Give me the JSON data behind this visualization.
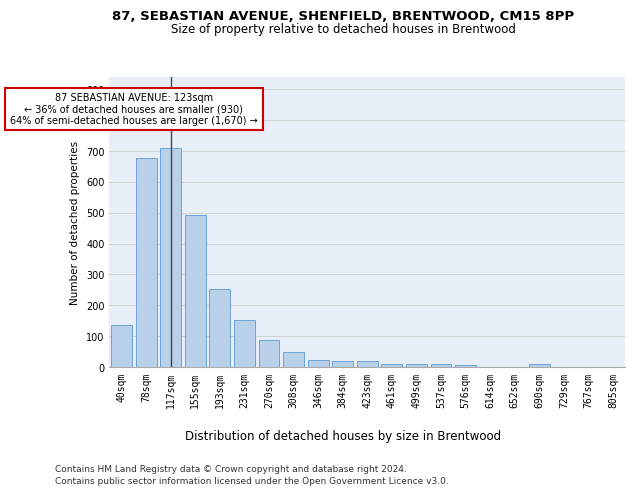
{
  "title": "87, SEBASTIAN AVENUE, SHENFIELD, BRENTWOOD, CM15 8PP",
  "subtitle": "Size of property relative to detached houses in Brentwood",
  "xlabel": "Distribution of detached houses by size in Brentwood",
  "ylabel": "Number of detached properties",
  "categories": [
    "40sqm",
    "78sqm",
    "117sqm",
    "155sqm",
    "193sqm",
    "231sqm",
    "270sqm",
    "308sqm",
    "346sqm",
    "384sqm",
    "423sqm",
    "461sqm",
    "499sqm",
    "537sqm",
    "576sqm",
    "614sqm",
    "652sqm",
    "690sqm",
    "729sqm",
    "767sqm",
    "805sqm"
  ],
  "values": [
    135,
    678,
    710,
    492,
    252,
    152,
    88,
    50,
    22,
    18,
    18,
    10,
    10,
    10,
    8,
    0,
    0,
    10,
    0,
    0,
    0
  ],
  "bar_color": "#b8d0e8",
  "bar_edge_color": "#5b9bd5",
  "vline_x": 2,
  "vline_color": "#444444",
  "annotation_text": "87 SEBASTIAN AVENUE: 123sqm\n← 36% of detached houses are smaller (930)\n64% of semi-detached houses are larger (1,670) →",
  "annotation_box_color": "#ffffff",
  "annotation_box_edge_color": "#cc0000",
  "ylim": [
    0,
    940
  ],
  "yticks": [
    0,
    100,
    200,
    300,
    400,
    500,
    600,
    700,
    800,
    900
  ],
  "grid_color": "#d0d0d0",
  "bg_color": "#e8eef8",
  "footer1": "Contains HM Land Registry data © Crown copyright and database right 2024.",
  "footer2": "Contains public sector information licensed under the Open Government Licence v3.0.",
  "title_fontsize": 9.5,
  "subtitle_fontsize": 8.5,
  "xlabel_fontsize": 8.5,
  "ylabel_fontsize": 7.5,
  "tick_fontsize": 7,
  "footer_fontsize": 6.5
}
